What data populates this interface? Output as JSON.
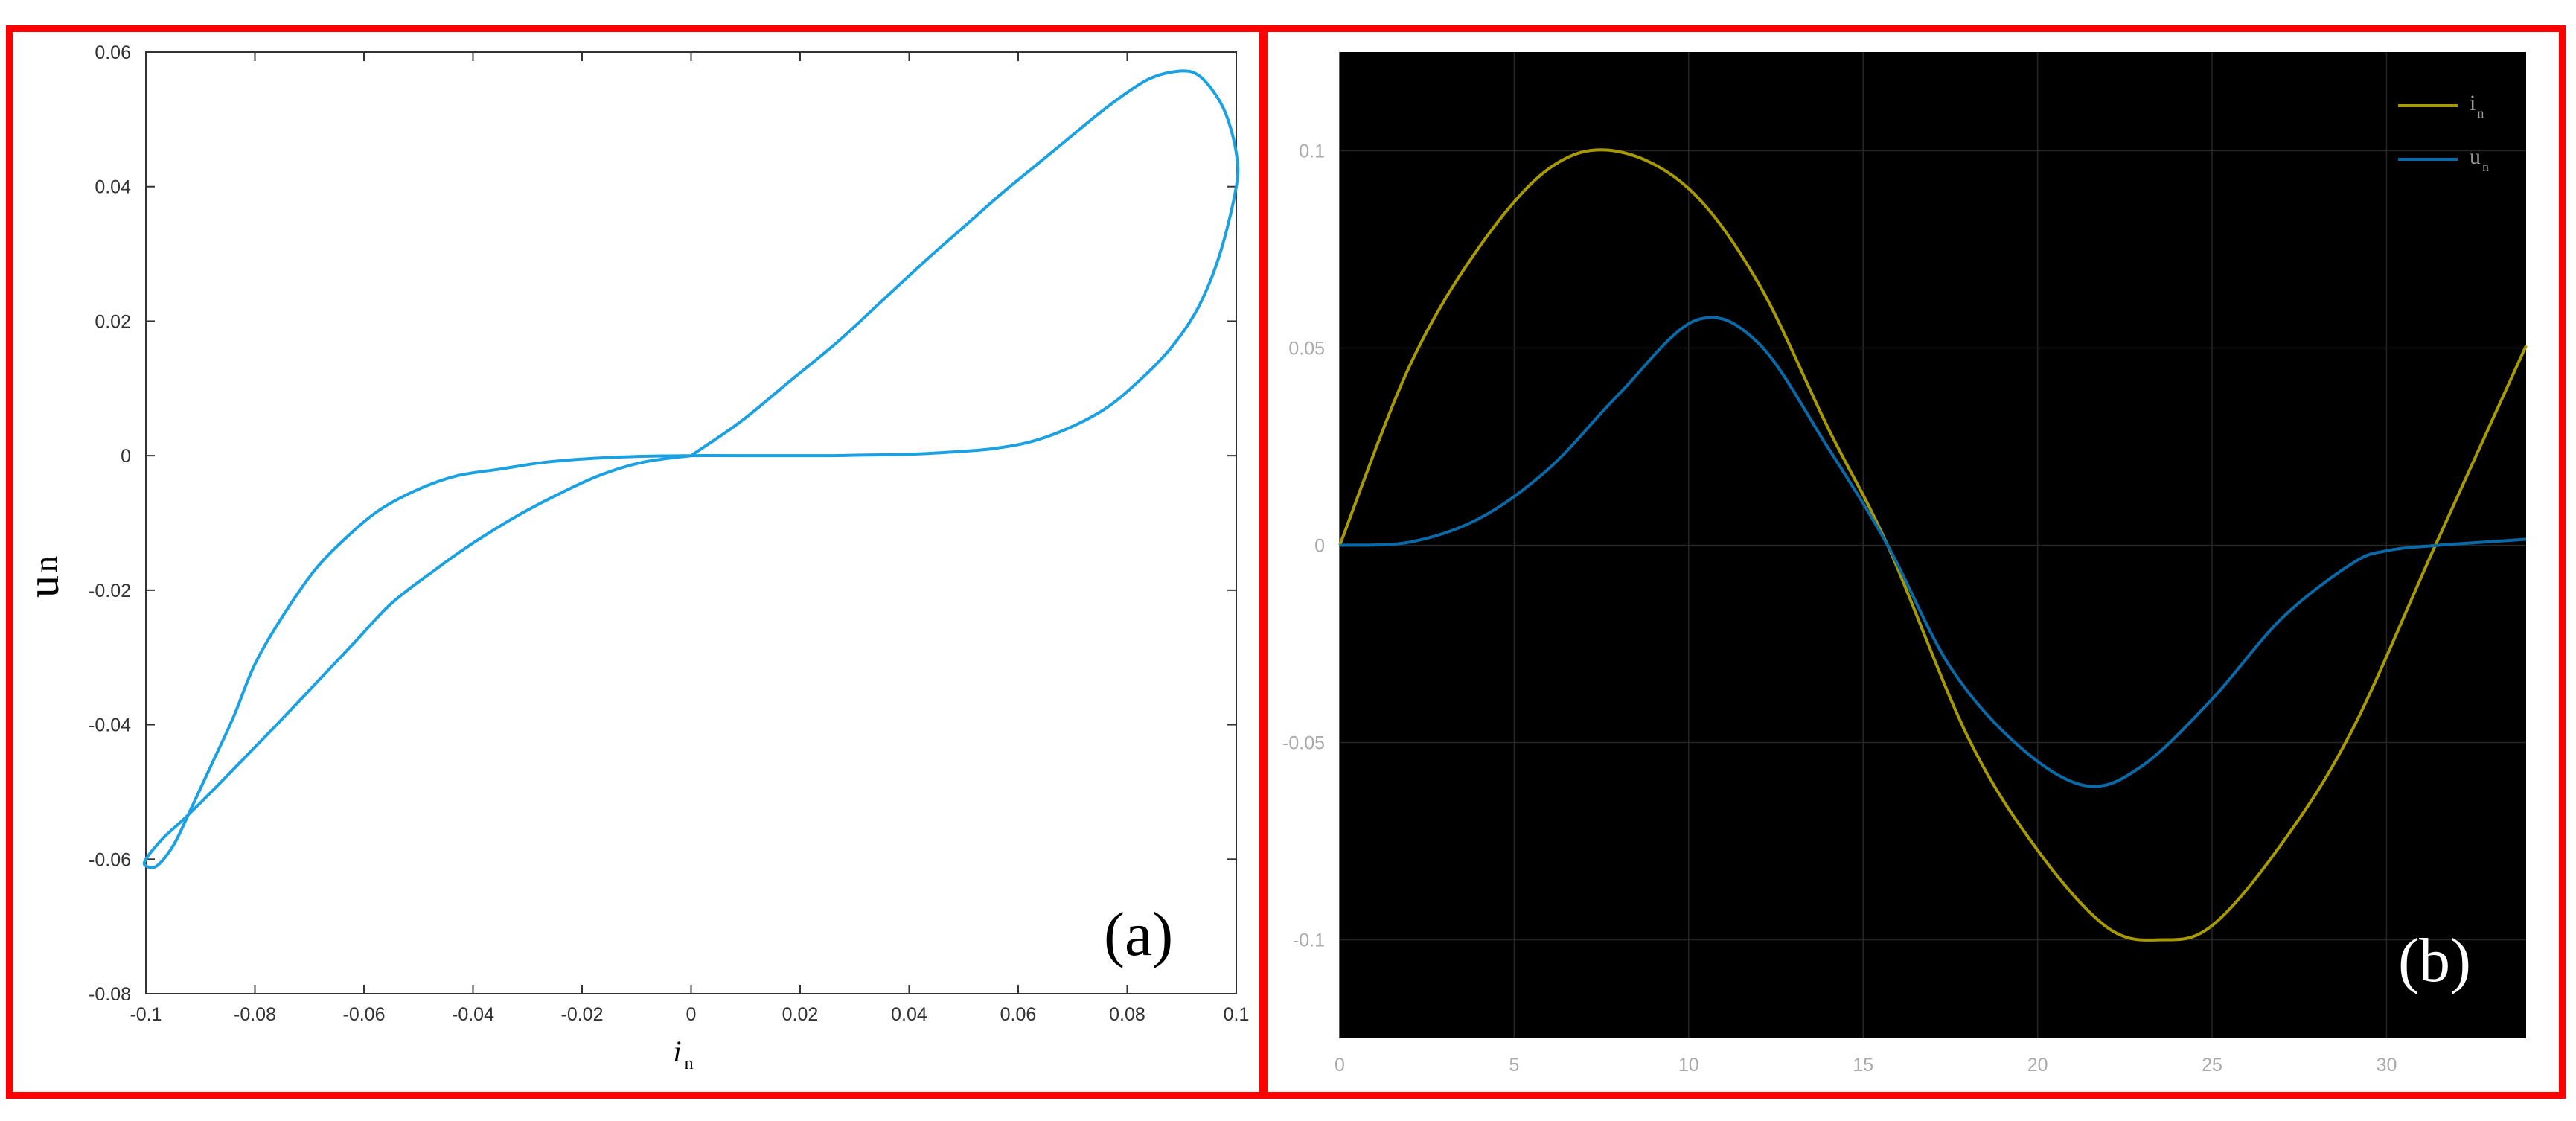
{
  "colors": {
    "frame": "#ff0000",
    "loop": "#1ba1e2",
    "in_line": "#a79a00",
    "un_line": "#0a6aa8",
    "panel_b_bg": "#000000",
    "panel_b_ticks": "#aaaaaa"
  },
  "chart_data": [
    {
      "type": "line",
      "panel_label": "(a)",
      "xlabel_main": "i",
      "xlabel_sub": "n",
      "ylabel_main": "u",
      "ylabel_sub": "n",
      "xlim": [
        -0.1,
        0.1
      ],
      "ylim": [
        -0.08,
        0.06
      ],
      "xticks": [
        -0.1,
        -0.08,
        -0.06,
        -0.04,
        -0.02,
        0,
        0.02,
        0.04,
        0.06,
        0.08,
        0.1
      ],
      "xtick_labels": [
        "-0.1",
        "-0.08",
        "-0.06",
        "-0.04",
        "-0.02",
        "0",
        "0.02",
        "0.04",
        "0.06",
        "0.08",
        "0.1"
      ],
      "yticks": [
        -0.08,
        -0.06,
        -0.04,
        -0.02,
        0,
        0.02,
        0.04,
        0.06
      ],
      "ytick_labels": [
        "-0.08",
        "-0.06",
        "-0.04",
        "-0.02",
        "0",
        "0.02",
        "0.04",
        "0.06"
      ],
      "grid": false,
      "series": [
        {
          "color": "#1ba1e2",
          "x": [
            0,
            0.009,
            0.018,
            0.027,
            0.035,
            0.043,
            0.05,
            0.057,
            0.063,
            0.069,
            0.075,
            0.08,
            0.084,
            0.088,
            0.092,
            0.095,
            0.098,
            0.1,
            0.1,
            0.097,
            0.093,
            0.088,
            0.082,
            0.076,
            0.069,
            0.062,
            0.055,
            0.047,
            0.04,
            0.032,
            0.025,
            0.017,
            0.009,
            0,
            -0.009,
            -0.018,
            -0.027,
            -0.035,
            -0.043,
            -0.05,
            -0.057,
            -0.063,
            -0.069,
            -0.075,
            -0.08,
            -0.084,
            -0.088,
            -0.092,
            -0.095,
            -0.098,
            -0.1,
            -0.1,
            -0.097,
            -0.093,
            -0.088,
            -0.082,
            -0.076,
            -0.069,
            -0.062,
            -0.055,
            -0.047,
            -0.04,
            -0.032,
            -0.025,
            -0.017,
            -0.009,
            0
          ],
          "y": [
            0,
            0.005,
            0.011,
            0.017,
            0.023,
            0.029,
            0.034,
            0.039,
            0.043,
            0.047,
            0.051,
            0.054,
            0.056,
            0.057,
            0.057,
            0.055,
            0.051,
            0.045,
            0.04,
            0.03,
            0.022,
            0.016,
            0.011,
            0.007,
            0.004,
            0.002,
            0.001,
            0.0005,
            0.0002,
            0.0001,
            0,
            0,
            0,
            0,
            -0.0001,
            -0.0004,
            -0.001,
            -0.002,
            -0.003,
            -0.005,
            -0.008,
            -0.012,
            -0.017,
            -0.024,
            -0.031,
            -0.039,
            -0.046,
            -0.053,
            -0.058,
            -0.061,
            -0.061,
            -0.06,
            -0.057,
            -0.054,
            -0.05,
            -0.045,
            -0.04,
            -0.034,
            -0.028,
            -0.022,
            -0.017,
            -0.013,
            -0.009,
            -0.006,
            -0.003,
            -0.001,
            0
          ]
        }
      ]
    },
    {
      "type": "line",
      "panel_label": "(b)",
      "xlim": [
        0,
        34
      ],
      "ylim": [
        -0.125,
        0.125
      ],
      "xticks": [
        0,
        5,
        10,
        15,
        20,
        25,
        30
      ],
      "xtick_labels": [
        "0",
        "5",
        "10",
        "15",
        "20",
        "25",
        "30"
      ],
      "yticks": [
        -0.1,
        -0.05,
        0,
        0.05,
        0.1
      ],
      "ytick_labels": [
        "-0.1",
        "-0.05",
        "0",
        "0.05",
        "0.1"
      ],
      "grid": true,
      "legend_position": "top-right",
      "series": [
        {
          "name": "i",
          "name_sub": "n",
          "color": "#a79a00",
          "x": [
            0,
            2,
            4,
            6,
            7.85,
            10,
            12,
            14,
            15.7,
            18,
            20,
            22,
            23.55,
            25,
            27,
            29,
            31.4,
            34
          ],
          "y": [
            0,
            0.0454,
            0.0756,
            0.0955,
            0.1,
            0.0904,
            0.0664,
            0.0296,
            0,
            -0.0486,
            -0.0773,
            -0.0969,
            -0.1,
            -0.0964,
            -0.0756,
            -0.0471,
            0,
            0.0506
          ]
        },
        {
          "name": "u",
          "name_sub": "n",
          "color": "#0a6aa8",
          "x": [
            0,
            2,
            4,
            6,
            8,
            10.2,
            12,
            14,
            15.7,
            17.5,
            19.5,
            21.4,
            23,
            25,
            27,
            29,
            30,
            31.5,
            34
          ],
          "y": [
            0,
            0.0008,
            0.0068,
            0.0195,
            0.0383,
            0.057,
            0.0512,
            0.0246,
            0,
            -0.0309,
            -0.0512,
            -0.061,
            -0.0559,
            -0.039,
            -0.0185,
            -0.0047,
            -0.0014,
            0,
            0.0015
          ]
        }
      ]
    }
  ]
}
